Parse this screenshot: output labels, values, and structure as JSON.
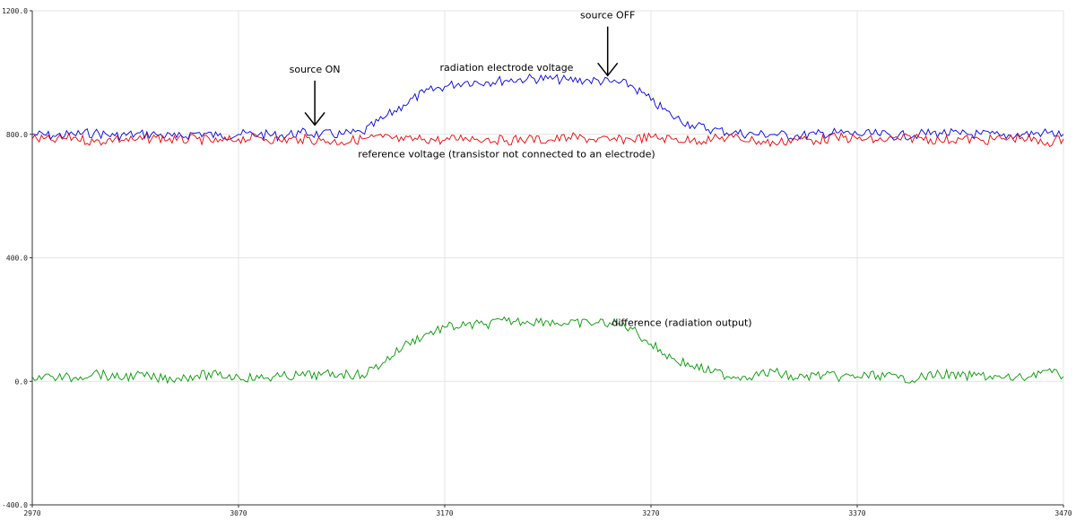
{
  "chart_data": {
    "type": "line",
    "xlim": [
      2970,
      3470
    ],
    "ylim": [
      -400,
      1200
    ],
    "grid": true,
    "x_ticks": [
      "2970",
      "3070",
      "3170",
      "3270",
      "3370",
      "3470"
    ],
    "y_ticks": [
      "1200.0",
      "800.0",
      "400.0",
      "0.0",
      "-400.0"
    ],
    "series": [
      {
        "color": "#0000ee",
        "x": [
          2970,
          2980,
          2990,
          3000,
          3010,
          3020,
          3030,
          3040,
          3050,
          3060,
          3070,
          3080,
          3090,
          3100,
          3110,
          3120,
          3130,
          3140,
          3150,
          3160,
          3170,
          3180,
          3190,
          3200,
          3210,
          3220,
          3230,
          3240,
          3250,
          3260,
          3270,
          3280,
          3290,
          3300,
          3310,
          3320,
          3330,
          3340,
          3350,
          3360,
          3370,
          3380,
          3390,
          3400,
          3410,
          3420,
          3430,
          3440,
          3450,
          3460,
          3470
        ],
        "y": [
          800,
          795,
          800,
          805,
          795,
          800,
          800,
          790,
          805,
          795,
          800,
          800,
          795,
          805,
          800,
          800,
          805,
          850,
          895,
          935,
          955,
          970,
          970,
          975,
          980,
          980,
          975,
          975,
          970,
          960,
          910,
          860,
          830,
          815,
          805,
          800,
          800,
          795,
          800,
          805,
          800,
          800,
          795,
          800,
          805,
          800,
          800,
          795,
          800,
          805,
          800
        ]
      },
      {
        "color": "#ee0000",
        "x": [
          2970,
          2980,
          2990,
          3000,
          3010,
          3020,
          3030,
          3040,
          3050,
          3060,
          3070,
          3080,
          3090,
          3100,
          3110,
          3120,
          3130,
          3140,
          3150,
          3160,
          3170,
          3180,
          3190,
          3200,
          3210,
          3220,
          3230,
          3240,
          3250,
          3260,
          3270,
          3280,
          3290,
          3300,
          3310,
          3320,
          3330,
          3340,
          3350,
          3360,
          3370,
          3380,
          3390,
          3400,
          3410,
          3420,
          3430,
          3440,
          3450,
          3460,
          3470
        ],
        "y": [
          785,
          780,
          790,
          775,
          785,
          780,
          790,
          780,
          785,
          775,
          785,
          790,
          780,
          785,
          780,
          775,
          785,
          790,
          780,
          785,
          780,
          790,
          785,
          780,
          785,
          780,
          790,
          785,
          780,
          785,
          790,
          785,
          780,
          785,
          790,
          780,
          770,
          785,
          780,
          790,
          785,
          780,
          785,
          790,
          780,
          785,
          780,
          785,
          790,
          770,
          785
        ]
      },
      {
        "color": "#009900",
        "x": [
          2970,
          2980,
          2990,
          3000,
          3010,
          3020,
          3030,
          3040,
          3050,
          3060,
          3070,
          3080,
          3090,
          3100,
          3110,
          3120,
          3130,
          3140,
          3150,
          3160,
          3170,
          3180,
          3190,
          3200,
          3210,
          3220,
          3230,
          3240,
          3250,
          3260,
          3270,
          3280,
          3290,
          3300,
          3310,
          3320,
          3330,
          3340,
          3350,
          3360,
          3370,
          3380,
          3390,
          3400,
          3410,
          3420,
          3430,
          3440,
          3450,
          3460,
          3470
        ],
        "y": [
          15,
          15,
          10,
          30,
          10,
          20,
          10,
          10,
          20,
          20,
          15,
          10,
          15,
          20,
          20,
          25,
          20,
          60,
          115,
          150,
          175,
          180,
          185,
          195,
          195,
          195,
          185,
          190,
          190,
          175,
          120,
          75,
          50,
          30,
          15,
          20,
          30,
          10,
          20,
          15,
          15,
          20,
          10,
          10,
          25,
          15,
          20,
          10,
          10,
          35,
          15
        ]
      }
    ],
    "annotations": [
      {
        "text": "source ON",
        "x": 3107,
        "y": 1000,
        "arrow_to": [
          3107,
          830
        ]
      },
      {
        "text": "source OFF",
        "x": 3249,
        "y": 1175,
        "arrow_to": [
          3249,
          990
        ]
      },
      {
        "text": "radiation electrode voltage",
        "x": 3200,
        "y": 1005
      },
      {
        "text": "reference voltage (transistor not connected to an electrode)",
        "x": 3200,
        "y": 725
      },
      {
        "text": "difference (radiation output)",
        "x": 3285,
        "y": 180
      }
    ]
  }
}
